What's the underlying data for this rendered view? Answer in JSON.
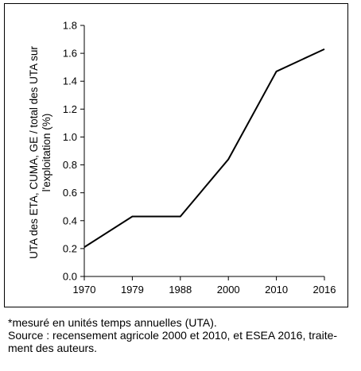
{
  "chart_data": {
    "type": "line",
    "categories": [
      "1970",
      "1979",
      "1988",
      "2000",
      "2010",
      "2016"
    ],
    "series": [
      {
        "values": [
          0.21,
          0.43,
          0.43,
          0.84,
          1.47,
          1.63
        ]
      }
    ],
    "ylabel_lines": [
      "UTA des ETA, CUMA, GE / total des UTA sur",
      "l'exploitation (%)"
    ],
    "ylim": [
      0,
      1.8
    ],
    "yticks": [
      "0.0",
      "0.2",
      "0.4",
      "0.6",
      "0.8",
      "1.0",
      "1.2",
      "1.4",
      "1.6",
      "1.8"
    ],
    "grid": false,
    "line_color": "#000000"
  },
  "notes": {
    "line1": "*mesuré en unités temps annuelles (UTA).",
    "line2": "Source : recensement agricole 2000 et 2010, et ESEA 2016, traite-",
    "line3": "ment des auteurs."
  }
}
